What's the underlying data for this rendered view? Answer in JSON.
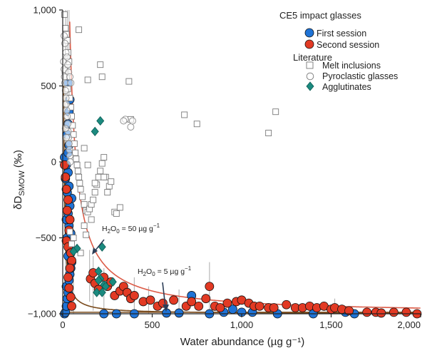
{
  "chart_data": {
    "type": "scatter",
    "xlabel": "Water abundance (µg g⁻¹)",
    "ylabel": "δD",
    "ylabel_sub": "SMOW",
    "ylabel_unit": " (‰)",
    "xlim": [
      0,
      2000
    ],
    "ylim": [
      -1000,
      1000
    ],
    "x_ticks": [
      0,
      500,
      1000,
      1500,
      2000
    ],
    "x_tick_labels": [
      "0",
      "500",
      "1,000",
      "1,500",
      "2,000"
    ],
    "y_ticks": [
      -1000,
      -500,
      0,
      500,
      1000
    ],
    "y_tick_labels": [
      "−1,000",
      "−500",
      "0",
      "500",
      "1,000"
    ],
    "legend": {
      "group1_title": "CE5 impact glasses",
      "first_session": "First session",
      "second_session": "Second session",
      "group2_title": "Literature",
      "melt_inclusions": "Melt inclusions",
      "pyroclastic_glasses": "Pyroclastic glasses",
      "agglutinates": "Agglutinates"
    },
    "colors": {
      "first_session": "#1f73d6",
      "second_session": "#e23a24",
      "agglutinates": "#1b8a7f",
      "mixing_curve": "#dc5b47",
      "baseline": "#7a4b1c"
    },
    "annotations": [
      {
        "base": "H",
        "sub1": "2",
        "mid": "O",
        "sub2": "0",
        "tail": " = 50 µg g",
        "sup": "−1",
        "x": 130,
        "y": -440,
        "arrow_from": [
          180,
          -530
        ],
        "arrow_to": [
          160,
          -600
        ]
      },
      {
        "base": "H",
        "sub1": "2",
        "mid": "O",
        "sub2": "0",
        "tail": " = 5 µg g",
        "sup": "−1",
        "x": 430,
        "y": -730,
        "arrow_from": [
          570,
          -800
        ],
        "arrow_to": [
          570,
          -985
        ]
      }
    ],
    "series": [
      {
        "name": "First session",
        "marker": "circle-filled",
        "points": [
          [
            10,
            -1000
          ],
          [
            15,
            -990
          ],
          [
            20,
            -950
          ],
          [
            25,
            -900
          ],
          [
            30,
            -860
          ],
          [
            20,
            -820
          ],
          [
            35,
            -780
          ],
          [
            40,
            -740
          ],
          [
            45,
            -700
          ],
          [
            50,
            -660
          ],
          [
            30,
            -620
          ],
          [
            40,
            -560
          ],
          [
            25,
            -500
          ],
          [
            45,
            -470
          ],
          [
            35,
            -420
          ],
          [
            20,
            -380
          ],
          [
            30,
            -340
          ],
          [
            40,
            -290
          ],
          [
            50,
            -240
          ],
          [
            25,
            -200
          ],
          [
            35,
            -160
          ],
          [
            15,
            -110
          ],
          [
            30,
            -70
          ],
          [
            20,
            -20
          ],
          [
            10,
            30
          ],
          [
            30,
            60
          ],
          [
            35,
            110
          ],
          [
            25,
            180
          ],
          [
            30,
            250
          ],
          [
            35,
            330
          ],
          [
            40,
            410
          ],
          [
            30,
            520
          ],
          [
            720,
            -880
          ],
          [
            580,
            -995
          ],
          [
            650,
            -995
          ],
          [
            820,
            -1000
          ],
          [
            900,
            -990
          ],
          [
            950,
            -970
          ],
          [
            1000,
            -990
          ],
          [
            1060,
            -990
          ],
          [
            1200,
            -1000
          ],
          [
            1400,
            -1000
          ],
          [
            1580,
            -990
          ],
          [
            1630,
            -1000
          ],
          [
            230,
            -1000
          ],
          [
            300,
            -1000
          ],
          [
            400,
            -1000
          ]
        ]
      },
      {
        "name": "Second session",
        "marker": "circle-filled",
        "points": [
          [
            10,
            -20
          ],
          [
            15,
            -100
          ],
          [
            20,
            -180
          ],
          [
            30,
            -250
          ],
          [
            25,
            -320
          ],
          [
            40,
            -380
          ],
          [
            35,
            -450
          ],
          [
            20,
            -520
          ],
          [
            30,
            -560
          ],
          [
            45,
            -600
          ],
          [
            50,
            -650
          ],
          [
            40,
            -700
          ],
          [
            30,
            -760
          ],
          [
            35,
            -830
          ],
          [
            45,
            -890
          ],
          [
            50,
            -950
          ],
          [
            155,
            -770
          ],
          [
            170,
            -730
          ],
          [
            180,
            -800
          ],
          [
            200,
            -840
          ],
          [
            230,
            -760
          ],
          [
            250,
            -820
          ],
          [
            270,
            -790
          ],
          [
            290,
            -880
          ],
          [
            320,
            -850
          ],
          [
            340,
            -820
          ],
          [
            360,
            -860
          ],
          [
            380,
            -900
          ],
          [
            400,
            -880
          ],
          [
            450,
            -920
          ],
          [
            490,
            -910
          ],
          [
            530,
            -950
          ],
          [
            560,
            -930
          ],
          [
            620,
            -910
          ],
          [
            690,
            -950
          ],
          [
            720,
            -920
          ],
          [
            760,
            -950
          ],
          [
            800,
            -900
          ],
          [
            820,
            -820
          ],
          [
            850,
            -950
          ],
          [
            880,
            -960
          ],
          [
            920,
            -930
          ],
          [
            970,
            -920
          ],
          [
            1000,
            -910
          ],
          [
            1040,
            -930
          ],
          [
            1070,
            -950
          ],
          [
            1100,
            -950
          ],
          [
            1150,
            -960
          ],
          [
            1180,
            -960
          ],
          [
            1250,
            -940
          ],
          [
            1300,
            -960
          ],
          [
            1340,
            -960
          ],
          [
            1380,
            -950
          ],
          [
            1420,
            -960
          ],
          [
            1460,
            -950
          ],
          [
            1500,
            -970
          ],
          [
            1520,
            -960
          ],
          [
            1560,
            -970
          ],
          [
            1600,
            -980
          ],
          [
            1700,
            -990
          ],
          [
            1750,
            -990
          ],
          [
            1780,
            -995
          ],
          [
            1850,
            -990
          ],
          [
            1920,
            -990
          ],
          [
            1980,
            -1000
          ]
        ]
      },
      {
        "name": "Melt inclusions",
        "marker": "square-open",
        "points": [
          [
            10,
            970
          ],
          [
            15,
            880
          ],
          [
            20,
            840
          ],
          [
            25,
            800
          ],
          [
            30,
            720
          ],
          [
            35,
            660
          ],
          [
            12,
            600
          ],
          [
            22,
            560
          ],
          [
            28,
            480
          ],
          [
            40,
            420
          ],
          [
            45,
            360
          ],
          [
            50,
            300
          ],
          [
            55,
            240
          ],
          [
            60,
            180
          ],
          [
            65,
            120
          ],
          [
            70,
            60
          ],
          [
            75,
            20
          ],
          [
            80,
            -20
          ],
          [
            85,
            -60
          ],
          [
            90,
            -100
          ],
          [
            95,
            -140
          ],
          [
            100,
            -180
          ],
          [
            110,
            -230
          ],
          [
            120,
            -280
          ],
          [
            130,
            -320
          ],
          [
            140,
            -330
          ],
          [
            150,
            -310
          ],
          [
            160,
            -280
          ],
          [
            170,
            -250
          ],
          [
            180,
            -200
          ],
          [
            190,
            -150
          ],
          [
            200,
            -100
          ],
          [
            210,
            -60
          ],
          [
            220,
            -10
          ],
          [
            230,
            30
          ],
          [
            240,
            -100
          ],
          [
            250,
            -200
          ],
          [
            260,
            -160
          ],
          [
            270,
            -130
          ],
          [
            290,
            -330
          ],
          [
            300,
            -340
          ],
          [
            320,
            -300
          ],
          [
            140,
            540
          ],
          [
            90,
            870
          ],
          [
            210,
            640
          ],
          [
            220,
            560
          ],
          [
            230,
            -100
          ],
          [
            370,
            530
          ],
          [
            380,
            280
          ],
          [
            680,
            310
          ],
          [
            750,
            250
          ],
          [
            1150,
            190
          ],
          [
            1190,
            330
          ],
          [
            40,
            -460
          ],
          [
            50,
            -540
          ],
          [
            60,
            -500
          ],
          [
            100,
            -600
          ],
          [
            120,
            -420
          ],
          [
            130,
            -480
          ],
          [
            160,
            -380
          ],
          [
            180,
            -140
          ],
          [
            140,
            -20
          ],
          [
            120,
            90
          ]
        ]
      },
      {
        "name": "Pyroclastic glasses",
        "marker": "circle-open",
        "points": [
          [
            5,
            660
          ],
          [
            8,
            610
          ],
          [
            10,
            560
          ],
          [
            12,
            520
          ],
          [
            15,
            470
          ],
          [
            18,
            420
          ],
          [
            20,
            380
          ],
          [
            22,
            340
          ],
          [
            25,
            300
          ],
          [
            28,
            250
          ],
          [
            30,
            200
          ],
          [
            32,
            160
          ],
          [
            35,
            120
          ],
          [
            38,
            80
          ],
          [
            40,
            40
          ],
          [
            42,
            0
          ],
          [
            8,
            830
          ],
          [
            12,
            780
          ],
          [
            18,
            720
          ],
          [
            24,
            690
          ],
          [
            28,
            640
          ],
          [
            33,
            590
          ],
          [
            40,
            560
          ],
          [
            45,
            520
          ],
          [
            350,
            280
          ],
          [
            380,
            230
          ],
          [
            390,
            270
          ],
          [
            340,
            270
          ],
          [
            20,
            160
          ],
          [
            15,
            220
          ]
        ]
      },
      {
        "name": "Agglutinates",
        "marker": "diamond-filled",
        "points": [
          [
            180,
            200
          ],
          [
            210,
            270
          ],
          [
            220,
            -560
          ],
          [
            80,
            -570
          ],
          [
            60,
            -590
          ],
          [
            200,
            -720
          ],
          [
            210,
            -770
          ],
          [
            230,
            -810
          ],
          [
            280,
            -790
          ],
          [
            190,
            -860
          ],
          [
            220,
            -860
          ],
          [
            240,
            -820
          ],
          [
            200,
            -780
          ]
        ]
      }
    ],
    "error_bars": [
      {
        "x": 150,
        "y_low": -920,
        "y_high": -580
      },
      {
        "x": 170,
        "y_low": -980,
        "y_high": -620
      },
      {
        "x": 230,
        "y_low": -980,
        "y_high": -700
      },
      {
        "x": 400,
        "y_low": -1000,
        "y_high": -760
      },
      {
        "x": 480,
        "y_low": -1000,
        "y_high": -820
      },
      {
        "x": 650,
        "y_low": -1000,
        "y_high": -840
      },
      {
        "x": 820,
        "y_low": -1000,
        "y_high": -660
      },
      {
        "x": 1520,
        "y_low": -1000,
        "y_high": -900
      },
      {
        "x": 60,
        "y_low": -1000,
        "y_high": -480
      },
      {
        "x": 35,
        "y_low": -1000,
        "y_high": 1000
      },
      {
        "x": 25,
        "y_low": -1000,
        "y_high": 1000
      },
      {
        "x": 15,
        "y_low": -900,
        "y_high": 1000
      }
    ],
    "mixing_curves": [
      {
        "name": "H2O0 = 50",
        "h2o0": 50
      },
      {
        "name": "H2O0 = 5",
        "h2o0": 5
      }
    ]
  }
}
